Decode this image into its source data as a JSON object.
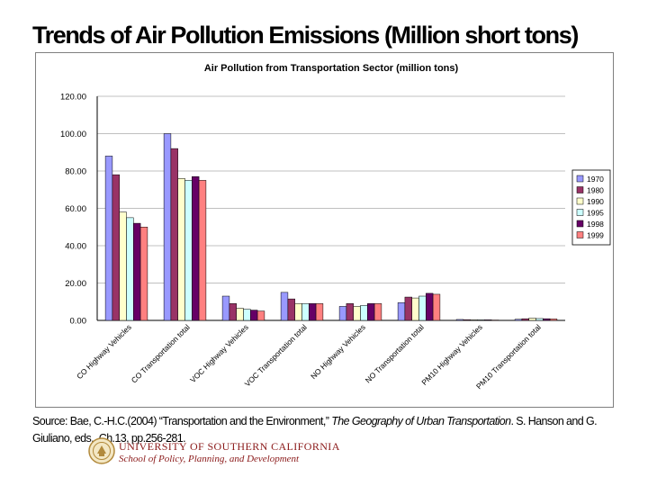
{
  "slide": {
    "title": "Trends of Air Pollution Emissions (Million short tons)"
  },
  "source": {
    "prefix": "Source:  Bae, C.-H.C.(2004) “Transportation and the Environment,” ",
    "book": "The Geography of  Urban Transportation",
    "suffix": ". S. Hanson and G. Giuliano, eds., Ch.13, pp.256-281."
  },
  "logo": {
    "university": "UNIVERSITY OF SOUTHERN CALIFORNIA",
    "school": "School of Policy, Planning, and Development"
  },
  "chart_data": {
    "type": "bar",
    "title": "Air Pollution from Transportation Sector (million tons)",
    "xlabel": "",
    "ylabel": "",
    "ylim": [
      0,
      120
    ],
    "yticks": [
      "0.00",
      "20.00",
      "40.00",
      "60.00",
      "80.00",
      "100.00",
      "120.00"
    ],
    "ytick_values": [
      0,
      20,
      40,
      60,
      80,
      100,
      120
    ],
    "grid": true,
    "legend_position": "right",
    "categories": [
      "CO Highway Vehicles",
      "CO Transportation total",
      "VOC Highway Vehicles",
      "VOC Transportation total",
      "NO Highway Vehicles",
      "NO Transportation total",
      "PM10 Highway Vehicles",
      "PM10 Transportation total"
    ],
    "series": [
      {
        "name": "1970",
        "color": "#9999ff",
        "values": [
          88,
          100,
          13,
          15,
          7.5,
          9.5,
          0.5,
          0.6
        ]
      },
      {
        "name": "1980",
        "color": "#993366",
        "values": [
          78,
          92,
          9,
          11.5,
          9,
          12.5,
          0.4,
          0.9
        ]
      },
      {
        "name": "1990",
        "color": "#ffffcc",
        "values": [
          58,
          76,
          6.5,
          9,
          7.5,
          12,
          0.3,
          1.2
        ]
      },
      {
        "name": "1995",
        "color": "#ccffff",
        "values": [
          55,
          75,
          6,
          9,
          8,
          13,
          0.3,
          1.0
        ]
      },
      {
        "name": "1998",
        "color": "#660066",
        "values": [
          52,
          77,
          5.5,
          9,
          9,
          14.5,
          0.3,
          0.9
        ]
      },
      {
        "name": "1999",
        "color": "#ff8080",
        "values": [
          50,
          75,
          5,
          9,
          9,
          14,
          0.2,
          0.8
        ]
      }
    ]
  }
}
